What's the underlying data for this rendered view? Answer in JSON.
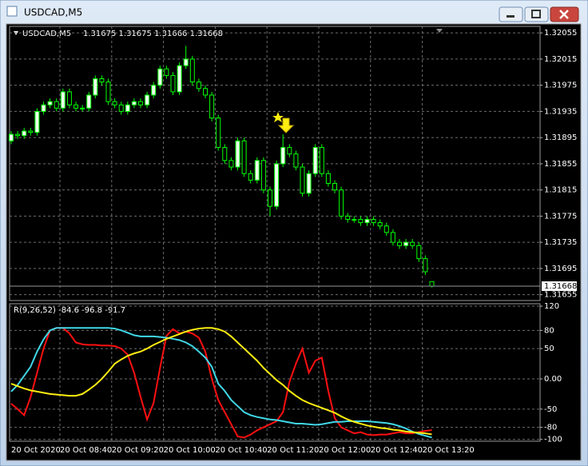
{
  "window": {
    "title": "USDCAD,M5"
  },
  "chart_data": [
    {
      "type": "candlestick",
      "title": "USDCAD,M5",
      "subtitle": "1.31675 1.31675 1.31666 1.31668",
      "open": [
        1.3189,
        1.319,
        1.31898,
        1.31905,
        1.31903,
        1.31935,
        1.31945,
        1.3195,
        1.3194,
        1.31965,
        1.31945,
        1.3194,
        1.3194,
        1.3196,
        1.31985,
        1.3198,
        1.3195,
        1.31945,
        1.31935,
        1.31945,
        1.3195,
        1.31945,
        1.3196,
        1.31975,
        1.32,
        1.3199,
        1.31965,
        1.32005,
        1.32015,
        1.3198,
        1.3197,
        1.3196,
        1.31925,
        1.3188,
        1.3186,
        1.3185,
        1.3189,
        1.3184,
        1.3183,
        1.3186,
        1.31815,
        1.3179,
        1.31855,
        1.3188,
        1.3187,
        1.3185,
        1.3181,
        1.3184,
        1.3188,
        1.3184,
        1.31825,
        1.31815,
        1.31775,
        1.3177,
        1.3177,
        1.31765,
        1.3177,
        1.31765,
        1.3176,
        1.3175,
        1.31735,
        1.3173,
        1.31735,
        1.3173,
        1.3171,
        1.31675
      ],
      "high": [
        1.31905,
        1.31905,
        1.3191,
        1.3191,
        1.3194,
        1.3195,
        1.31955,
        1.31955,
        1.3197,
        1.3197,
        1.3195,
        1.31945,
        1.31965,
        1.3199,
        1.3199,
        1.31985,
        1.31955,
        1.3195,
        1.3195,
        1.31955,
        1.31955,
        1.31965,
        1.3198,
        1.32005,
        1.32005,
        1.31995,
        1.3201,
        1.32035,
        1.3202,
        1.31985,
        1.31975,
        1.31965,
        1.3193,
        1.31885,
        1.31865,
        1.31895,
        1.31895,
        1.31845,
        1.31865,
        1.31865,
        1.3182,
        1.3186,
        1.319,
        1.31885,
        1.31875,
        1.31855,
        1.31845,
        1.31885,
        1.31885,
        1.31845,
        1.3183,
        1.3182,
        1.3178,
        1.31775,
        1.31775,
        1.31775,
        1.31775,
        1.3177,
        1.31765,
        1.31755,
        1.3174,
        1.3174,
        1.3174,
        1.31735,
        1.31715,
        1.31675
      ],
      "low": [
        1.31885,
        1.31893,
        1.31893,
        1.31898,
        1.31898,
        1.3193,
        1.3194,
        1.31935,
        1.31935,
        1.3194,
        1.31935,
        1.31935,
        1.31935,
        1.31955,
        1.31975,
        1.31945,
        1.3194,
        1.3193,
        1.3193,
        1.3194,
        1.3194,
        1.3194,
        1.31955,
        1.3197,
        1.31985,
        1.3196,
        1.3196,
        1.32,
        1.31975,
        1.31965,
        1.31955,
        1.3192,
        1.31875,
        1.31855,
        1.31845,
        1.31845,
        1.31835,
        1.31825,
        1.31825,
        1.3181,
        1.31775,
        1.31785,
        1.3185,
        1.31865,
        1.31845,
        1.31805,
        1.31805,
        1.31835,
        1.31835,
        1.3182,
        1.3181,
        1.3177,
        1.31765,
        1.31765,
        1.3176,
        1.3176,
        1.3176,
        1.31755,
        1.31745,
        1.3173,
        1.31725,
        1.31725,
        1.31725,
        1.31705,
        1.31685,
        1.31666
      ],
      "close": [
        1.319,
        1.31898,
        1.31905,
        1.31903,
        1.31935,
        1.31945,
        1.3195,
        1.3194,
        1.31965,
        1.31945,
        1.3194,
        1.3194,
        1.3196,
        1.31985,
        1.3198,
        1.3195,
        1.31945,
        1.31935,
        1.31945,
        1.3195,
        1.31945,
        1.3196,
        1.31975,
        1.32,
        1.3199,
        1.31965,
        1.32005,
        1.32015,
        1.3198,
        1.3197,
        1.3196,
        1.31925,
        1.3188,
        1.3186,
        1.3185,
        1.3189,
        1.3184,
        1.3183,
        1.3186,
        1.31815,
        1.3179,
        1.31855,
        1.3188,
        1.3187,
        1.3185,
        1.3181,
        1.3184,
        1.3188,
        1.3184,
        1.31825,
        1.31815,
        1.31775,
        1.3177,
        1.3177,
        1.31765,
        1.3177,
        1.31765,
        1.3176,
        1.3175,
        1.31735,
        1.3173,
        1.31735,
        1.3173,
        1.3171,
        1.3169,
        1.31668
      ],
      "up_color": "#ecffec",
      "down_color": "#000000",
      "wick_color": "#00ff00",
      "last_price": 1.31668,
      "ylim": [
        1.31646,
        1.32065
      ],
      "yticks": [
        1.32055,
        1.32015,
        1.31975,
        1.31935,
        1.31895,
        1.31855,
        1.31815,
        1.31775,
        1.31735,
        1.31695,
        1.31655
      ],
      "grid": true
    },
    {
      "type": "line",
      "title": "R(9,26,52) -84.6 -96.8 -91.7",
      "series": [
        {
          "color": "#ff1010",
          "values": [
            -41,
            -50,
            -60,
            -30,
            10,
            50,
            80,
            84,
            84,
            75,
            60,
            57,
            56,
            56,
            55,
            55,
            54,
            50,
            40,
            10,
            -30,
            -67,
            -40,
            18,
            71,
            82,
            75,
            78,
            75,
            68,
            45,
            0,
            -35,
            -55,
            -75,
            -95,
            -97,
            -92,
            -85,
            -80,
            -75,
            -70,
            -55,
            -5,
            25,
            50,
            10,
            30,
            35,
            -20,
            -65,
            -80,
            -85,
            -90,
            -88,
            -92,
            -93,
            -92,
            -92,
            -90,
            -88,
            -90,
            -90,
            -88,
            -86,
            -84.6
          ]
        },
        {
          "color": "#40d8e8",
          "values": [
            -21,
            -10,
            5,
            20,
            45,
            65,
            80,
            84,
            84,
            84,
            84,
            84,
            84,
            84,
            84,
            84,
            83,
            80,
            76,
            72,
            70,
            70,
            70,
            69,
            68,
            66,
            64,
            60,
            54,
            45,
            35,
            20,
            -8,
            -20,
            -35,
            -45,
            -55,
            -60,
            -63,
            -65,
            -67,
            -68,
            -70,
            -72,
            -74,
            -74,
            -75,
            -76,
            -75,
            -73,
            -71,
            -71,
            -70,
            -70,
            -70,
            -70,
            -71,
            -72,
            -73,
            -75,
            -78,
            -82,
            -87,
            -91,
            -94,
            -96.8
          ]
        },
        {
          "color": "#ffee10",
          "values": [
            -8,
            -12,
            -16,
            -19,
            -21,
            -23,
            -25,
            -26,
            -27,
            -28,
            -28,
            -25,
            -18,
            -10,
            0,
            12,
            25,
            32,
            38,
            42,
            45,
            50,
            56,
            61,
            66,
            70,
            74,
            78,
            81,
            83,
            84,
            84,
            82,
            78,
            70,
            60,
            50,
            40,
            30,
            18,
            8,
            -2,
            -10,
            -20,
            -28,
            -35,
            -40,
            -44,
            -48,
            -52,
            -56,
            -62,
            -67,
            -71,
            -74,
            -77,
            -79,
            -81,
            -82,
            -84,
            -85,
            -87,
            -88,
            -89,
            -90,
            -91.7
          ]
        }
      ],
      "ylim": [
        -103,
        124
      ],
      "yticks": [
        120,
        80,
        50,
        {
          "value": 0,
          "label": "0.00"
        },
        -50,
        -80,
        -100
      ],
      "grid": true,
      "xticklabels": [
        "20 Oct 2020",
        "20 Oct 08:40",
        "20 Oct 09:20",
        "20 Oct 10:00",
        "20 Oct 10:40",
        "20 Oct 11:20",
        "20 Oct 12:00",
        "20 Oct 12:40",
        "20 Oct 13:20"
      ]
    }
  ]
}
